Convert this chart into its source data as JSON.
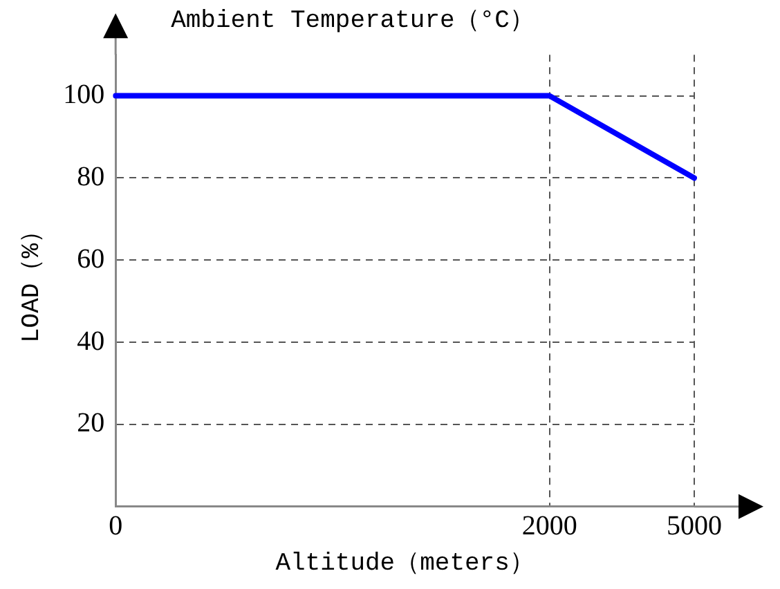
{
  "chart_data": {
    "type": "line",
    "title": "Ambient Temperature（°C）",
    "xlabel": "Altitude（meters）",
    "ylabel": "LOAD（%）",
    "categories": [
      "0",
      null,
      null,
      "2000",
      "5000"
    ],
    "series": [
      {
        "color": "#0000ff",
        "values": [
          100,
          null,
          null,
          100,
          80
        ]
      }
    ],
    "ylim": [
      0,
      110
    ],
    "yticks": [
      20,
      40,
      60,
      80,
      100
    ],
    "grid": true,
    "legend": false,
    "marker": "none",
    "line_style": "solid"
  }
}
